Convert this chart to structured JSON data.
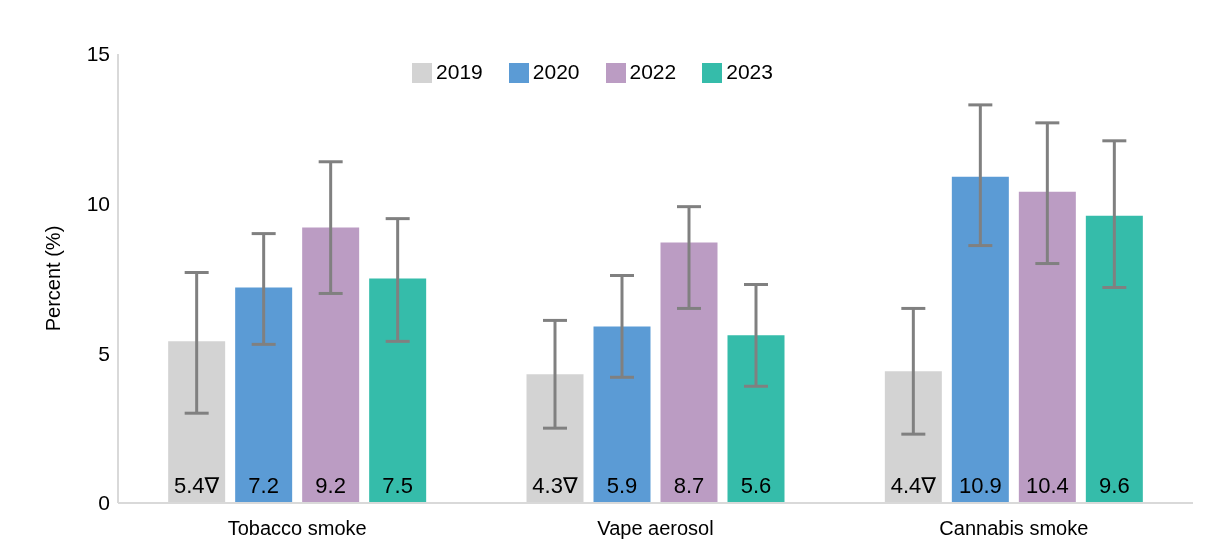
{
  "chart_data": {
    "type": "bar",
    "ylabel": "Percent (%)",
    "categories": [
      "Tobacco smoke",
      "Vape aerosol",
      "Cannabis smoke"
    ],
    "series": [
      {
        "name": "2019",
        "color": "#d3d3d3",
        "values": [
          5.4,
          4.3,
          4.4
        ],
        "errors": [
          [
            3.0,
            7.7
          ],
          [
            2.5,
            6.1
          ],
          [
            2.3,
            6.5
          ]
        ],
        "value_labels": [
          "5.4∇",
          "4.3∇",
          "4.4∇"
        ]
      },
      {
        "name": "2020",
        "color": "#5b9bd5",
        "values": [
          7.2,
          5.9,
          10.9
        ],
        "errors": [
          [
            5.3,
            9.0
          ],
          [
            4.2,
            7.6
          ],
          [
            8.6,
            13.3
          ]
        ],
        "value_labels": [
          "7.2",
          "5.9",
          "10.9"
        ]
      },
      {
        "name": "2022",
        "color": "#bb9cc3",
        "values": [
          9.2,
          8.7,
          10.4
        ],
        "errors": [
          [
            7.0,
            11.4
          ],
          [
            6.5,
            9.9
          ],
          [
            8.0,
            12.7
          ]
        ],
        "value_labels": [
          "9.2",
          "8.7",
          "10.4"
        ]
      },
      {
        "name": "2023",
        "color": "#35bcaa",
        "values": [
          7.5,
          5.6,
          9.6
        ],
        "errors": [
          [
            5.4,
            9.5
          ],
          [
            3.9,
            7.3
          ],
          [
            7.2,
            12.1
          ]
        ],
        "value_labels": [
          "7.5",
          "5.6",
          "9.6"
        ]
      }
    ],
    "ylim": [
      0,
      15
    ],
    "yticks": [
      0,
      5,
      10,
      15
    ],
    "grid": false,
    "legend": "top"
  }
}
